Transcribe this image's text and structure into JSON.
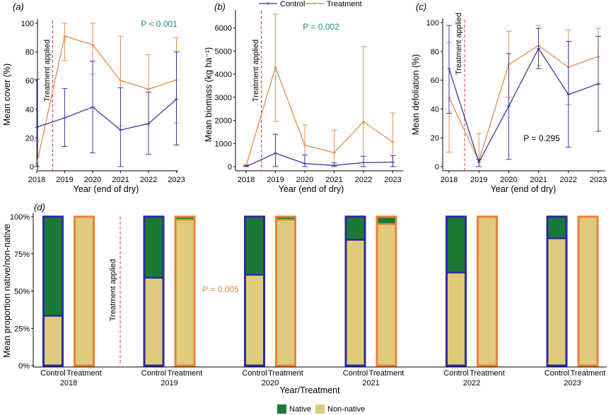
{
  "legend": {
    "control": "Control",
    "treatment": "Treatment",
    "native": "Native",
    "non_native": "Non-native"
  },
  "colors": {
    "control": "#2b2b9e",
    "treatment": "#e8823a",
    "native": "#1a7a35",
    "non_native": "#dfcb7c",
    "treatment_line": "#e0303a",
    "p_teal": "#1a8a80",
    "p_orange": "#e8823a"
  },
  "annotation": {
    "treatment_applied": "Treatment applied"
  },
  "chart_data": [
    {
      "panel": "(a)",
      "type": "line",
      "xlabel": "Year (end of dry)",
      "ylabel": "Mean cover (%)",
      "x": [
        "2018",
        "2019",
        "2020",
        "2021",
        "2022",
        "2023"
      ],
      "ylim": [
        0,
        100
      ],
      "yticks": [
        "0",
        "20",
        "40",
        "60",
        "80",
        "100"
      ],
      "p_label": "P < 0.001",
      "p_color": "teal",
      "series": [
        {
          "name": "Control",
          "values": [
            27.5,
            34,
            41.5,
            25.5,
            30,
            47
          ],
          "lower": [
            0,
            14,
            9.5,
            0,
            8.5,
            15
          ],
          "upper": [
            61,
            54.5,
            73.5,
            55,
            52,
            80
          ]
        },
        {
          "name": "Treatment",
          "values": [
            2,
            91,
            85,
            60,
            54,
            60.5
          ],
          "lower": [
            0,
            74,
            64.5,
            28.5,
            29,
            30.5
          ],
          "upper": [
            18,
            100,
            100,
            91,
            78,
            90
          ]
        }
      ]
    },
    {
      "panel": "(b)",
      "type": "line",
      "xlabel": "Year (end of dry)",
      "ylabel": "Mean biomass (kg ha⁻¹)",
      "x": [
        "2018",
        "2019",
        "2020",
        "2021",
        "2022",
        "2023"
      ],
      "ylim": [
        0,
        6600
      ],
      "yticks": [
        "0",
        "1000",
        "2000",
        "3000",
        "4000",
        "5000",
        "6000"
      ],
      "p_label": "P = 0.002",
      "p_color": "teal",
      "series": [
        {
          "name": "Control",
          "values": [
            0,
            580,
            130,
            50,
            170,
            190
          ],
          "lower": [
            0,
            0,
            0,
            0,
            0,
            0
          ],
          "upper": [
            50,
            1400,
            500,
            160,
            450,
            470
          ]
        },
        {
          "name": "Treatment",
          "values": [
            20,
            4300,
            920,
            600,
            1940,
            1060
          ],
          "lower": [
            0,
            1950,
            0,
            0,
            0,
            0
          ],
          "upper": [
            80,
            6600,
            1800,
            1580,
            5200,
            2320
          ]
        }
      ]
    },
    {
      "panel": "(c)",
      "type": "line",
      "xlabel": "Year (end of dry)",
      "ylabel": "Mean defoliation (%)",
      "x": [
        "2018",
        "2019",
        "2020",
        "2021",
        "2022",
        "2023"
      ],
      "ylim": [
        0,
        100
      ],
      "yticks": [
        "0",
        "20",
        "40",
        "60",
        "80",
        "100"
      ],
      "p_label": "P = 0.295",
      "p_color": "black",
      "series": [
        {
          "name": "Control",
          "values": [
            68,
            3,
            42,
            82,
            50,
            57.5
          ],
          "lower": [
            37,
            0,
            5,
            68,
            13.5,
            24.5
          ],
          "upper": [
            98,
            5,
            78.5,
            96,
            87,
            90.5
          ]
        },
        {
          "name": "Treatment",
          "values": [
            48,
            4,
            71,
            84,
            69,
            76.5
          ],
          "lower": [
            10,
            0,
            48,
            70,
            43,
            57
          ],
          "upper": [
            86,
            23,
            94,
            98,
            95,
            96
          ]
        }
      ]
    },
    {
      "panel": "(d)",
      "type": "bar",
      "stacked": true,
      "xlabel": "Year/Treatment",
      "ylabel": "Mean proportion native/non-native",
      "years": [
        "2018",
        "2019",
        "2020",
        "2021",
        "2022",
        "2023"
      ],
      "groups": [
        "Control",
        "Treatment"
      ],
      "ylim": [
        0,
        100
      ],
      "yticks": [
        "0%",
        "25%",
        "50%",
        "75%",
        "100%"
      ],
      "p_label": "P = 0.005",
      "p_color": "orange",
      "series": [
        {
          "name": "Non-native",
          "control": [
            33.5,
            59,
            61,
            84.5,
            62.5,
            85.5
          ],
          "treatment": [
            100,
            98,
            98,
            95,
            100,
            100
          ]
        },
        {
          "name": "Native",
          "control": [
            66.5,
            41,
            39,
            15.5,
            37.5,
            14.5
          ],
          "treatment": [
            0,
            2,
            2,
            5,
            0,
            0
          ]
        }
      ]
    }
  ]
}
